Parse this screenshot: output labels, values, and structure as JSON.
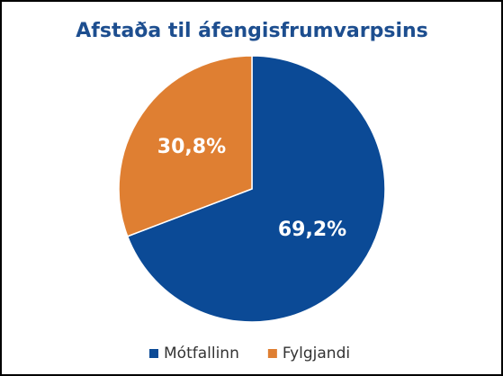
{
  "chart_data": {
    "type": "pie",
    "title": "Afstaða til áfengisfrumvarpsins",
    "categories": [
      "Mótfallinn",
      "Fylgjandi"
    ],
    "values": [
      69.2,
      30.8
    ],
    "value_labels": [
      "69,2%",
      "30,8%"
    ],
    "colors": [
      "#0b4a96",
      "#df7f32"
    ],
    "legend": "bottom"
  }
}
